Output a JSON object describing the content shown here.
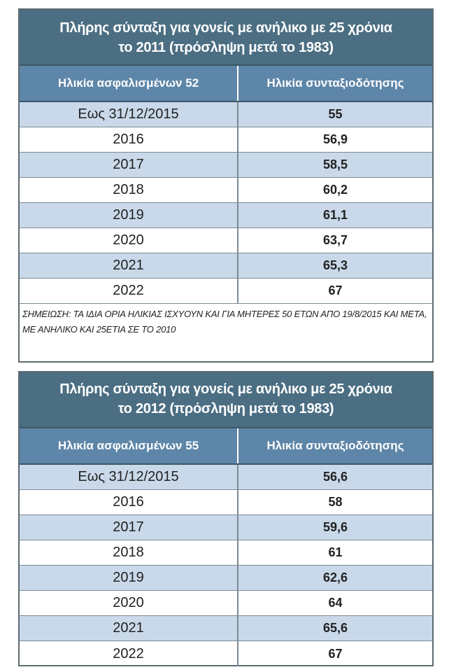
{
  "table1": {
    "title_line1": "Πλήρης σύνταξη για γονείς με ανήλικο με 25 χρόνια",
    "title_line2": "το 2011 (πρόσληψη μετά το 1983)",
    "col1_header": "Ηλικία ασφαλισμένων 52",
    "col2_header": "Ηλικία συνταξιοδότησης",
    "rows": [
      {
        "year": "Εως 31/12/2015",
        "age": "55"
      },
      {
        "year": "2016",
        "age": "56,9"
      },
      {
        "year": "2017",
        "age": "58,5"
      },
      {
        "year": "2018",
        "age": "60,2"
      },
      {
        "year": "2019",
        "age": "61,1"
      },
      {
        "year": "2020",
        "age": "63,7"
      },
      {
        "year": "2021",
        "age": "65,3"
      },
      {
        "year": "2022",
        "age": "67"
      }
    ],
    "note": "ΣΗΜΕΙΩΣΗ: ΤΑ ΙΔΙΑ ΟΡΙΑ ΗΛΙΚΙΑΣ ΙΣΧΥΟΥΝ ΚΑΙ ΓΙΑ ΜΗΤΕΡΕΣ 50 ΕΤΩΝ ΑΠΟ 19/8/2015 ΚΑΙ ΜΕΤΑ, ΜΕ ΑΝΗΛΙΚΟ ΚΑΙ 25ΕΤΙΑ ΣΕ ΤΟ 2010"
  },
  "table2": {
    "title_line1": "Πλήρης σύνταξη για γονείς με ανήλικο με 25 χρόνια",
    "title_line2": "το 2012 (πρόσληψη μετά το 1983)",
    "col1_header": "Ηλικία ασφαλισμένων 55",
    "col2_header": "Ηλικία συνταξιοδότησης",
    "rows": [
      {
        "year": "Εως 31/12/2015",
        "age": "56,6"
      },
      {
        "year": "2016",
        "age": "58"
      },
      {
        "year": "2017",
        "age": "59,6"
      },
      {
        "year": "2018",
        "age": "61"
      },
      {
        "year": "2019",
        "age": "62,6"
      },
      {
        "year": "2020",
        "age": "64"
      },
      {
        "year": "2021",
        "age": "65,6"
      },
      {
        "year": "2022",
        "age": "67"
      }
    ]
  },
  "colors": {
    "title_bg": "#4b6e83",
    "header_bg": "#5e86a8",
    "alt_row_bg": "#c9d9ea"
  }
}
